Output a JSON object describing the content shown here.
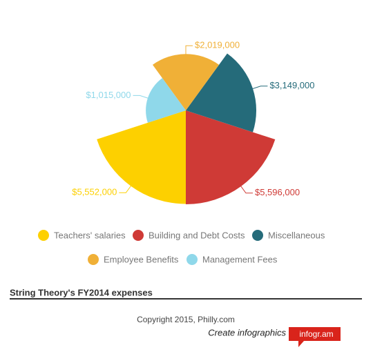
{
  "chart_data": {
    "type": "polar-area",
    "title": "String Theory's FY2014 expenses",
    "categories": [
      "Teachers' salaries",
      "Building and Debt Costs",
      "Miscellaneous",
      "Employee Benefits",
      "Management Fees"
    ],
    "values": [
      5552000,
      5596000,
      3149000,
      2019000,
      1015000
    ],
    "value_labels": [
      "$5,552,000",
      "$5,596,000",
      "$3,149,000",
      "$2,019,000",
      "$1,015,000"
    ],
    "colors": [
      "#fdd000",
      "#cf3a36",
      "#256b7a",
      "#f0b037",
      "#8fd8ea"
    ]
  },
  "footer": {
    "copyright": "Copyright 2015, Philly.com",
    "cta": "Create infographics",
    "brand": "infogr.am"
  }
}
